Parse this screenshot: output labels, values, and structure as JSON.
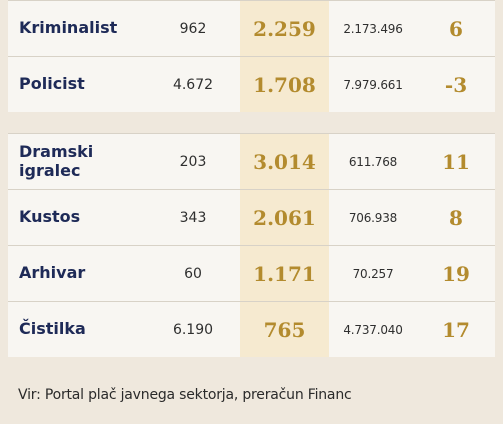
{
  "table": {
    "group_1": [
      {
        "occupation": "Kriminalist",
        "employees": "962",
        "salary": "2.259",
        "total": "2.173.496",
        "change": "6"
      },
      {
        "occupation": "Policist",
        "employees": "4.672",
        "salary": "1.708",
        "total": "7.979.661",
        "change": "-3"
      }
    ],
    "group_2": [
      {
        "occupation": "Dramski igralec",
        "employees": "203",
        "salary": "3.014",
        "total": "611.768",
        "change": "11"
      },
      {
        "occupation": "Kustos",
        "employees": "343",
        "salary": "2.061",
        "total": "706.938",
        "change": "8"
      },
      {
        "occupation": "Arhivar",
        "employees": "60",
        "salary": "1.171",
        "total": "70.257",
        "change": "19"
      },
      {
        "occupation": "Čistilka",
        "employees": "6.190",
        "salary": "765",
        "total": "4.737.040",
        "change": "17"
      }
    ]
  },
  "source": "Vir: Portal plač javnega sektorja, preračun Financ",
  "colors": {
    "page_bg": "#efe8dd",
    "cell_bg": "#f8f6f2",
    "accent_column_bg": "#f6ead0",
    "label_text": "#1e2a57",
    "accent_text": "#b38b2e"
  }
}
